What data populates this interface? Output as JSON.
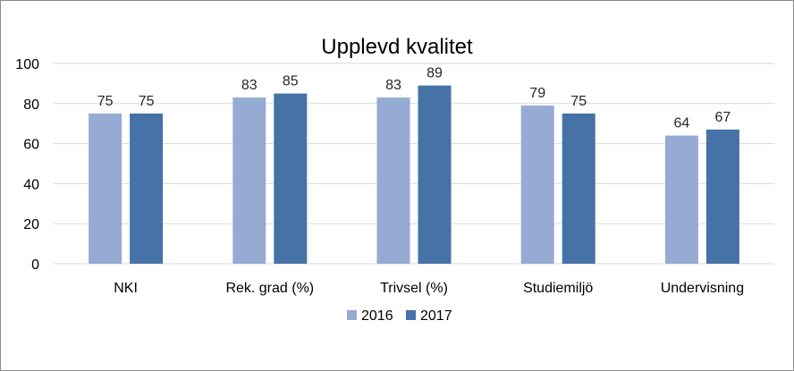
{
  "chart_data": {
    "type": "bar",
    "title": "Upplevd kvalitet",
    "xlabel": "",
    "ylabel": "",
    "categories": [
      "NKI",
      "Rek. grad (%)",
      "Trivsel (%)",
      "Studiemiljö",
      "Undervisning"
    ],
    "series": [
      {
        "name": "2016",
        "values": [
          75,
          83,
          83,
          79,
          64
        ],
        "color": "#95abd3"
      },
      {
        "name": "2017",
        "values": [
          75,
          85,
          89,
          75,
          67
        ],
        "color": "#4672a8"
      }
    ],
    "ylim": [
      0,
      100
    ],
    "yticks": [
      "0",
      "20",
      "40",
      "60",
      "80",
      "100"
    ],
    "grid": true,
    "legend_position": "bottom",
    "data_labels": true,
    "colors": {
      "grid": "#d9d9d9",
      "border": "#8c8c8c"
    }
  }
}
